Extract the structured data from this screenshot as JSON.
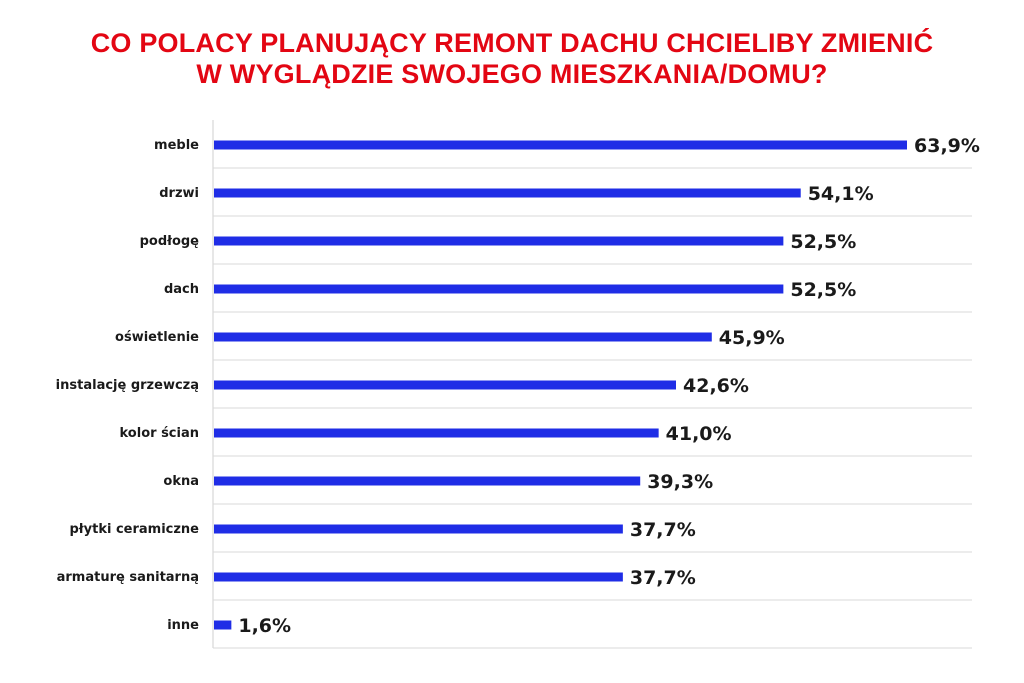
{
  "chart_data": {
    "type": "bar",
    "orientation": "horizontal",
    "title_lines": [
      "CO POLACY PLANUJĄCY REMONT DACHU CHCIELIBY ZMIENIĆ",
      "W WYGLĄDZIE SWOJEGO MIESZKANIA/DOMU?"
    ],
    "categories": [
      "meble",
      "drzwi",
      "podłogę",
      "dach",
      "oświetlenie",
      "instalację grzewczą",
      "kolor ścian",
      "okna",
      "płytki ceramiczne",
      "armaturę sanitarną",
      "inne"
    ],
    "values": [
      63.9,
      54.1,
      52.5,
      52.5,
      45.9,
      42.6,
      41.0,
      39.3,
      37.7,
      37.7,
      1.6
    ],
    "value_labels": [
      "63,9%",
      "54,1%",
      "52,5%",
      "52,5%",
      "45,9%",
      "42,6%",
      "41,0%",
      "39,3%",
      "37,7%",
      "37,7%",
      "1,6%"
    ],
    "xlim": [
      0,
      70
    ],
    "grid": "horizontal separators",
    "bar_color": "#1f2de6",
    "title_color": "#e30613"
  }
}
